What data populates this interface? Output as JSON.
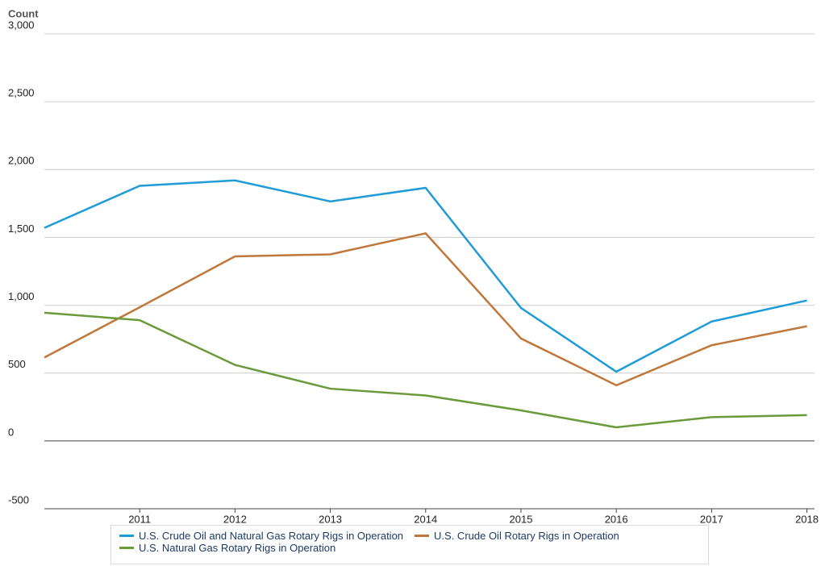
{
  "chart_data": {
    "type": "line",
    "y_label": "Count",
    "x": [
      2010,
      2011,
      2012,
      2013,
      2014,
      2015,
      2016,
      2017,
      2018
    ],
    "xlim": [
      2010,
      2018.08
    ],
    "xticks": [
      2011,
      2012,
      2013,
      2014,
      2015,
      2016,
      2017,
      2018
    ],
    "ylim": [
      -500,
      3000
    ],
    "yticks": [
      -500,
      0,
      500,
      {
        "value": 1000,
        "label": "1,000"
      },
      {
        "value": 1500,
        "label": "1,500"
      },
      {
        "value": 2000,
        "label": "2,000"
      },
      {
        "value": 2500,
        "label": "2,500"
      },
      {
        "value": 3000,
        "label": "3,000"
      }
    ],
    "grid": true,
    "legend": "bottom",
    "series": [
      {
        "name": "U.S. Crude Oil and Natural Gas Rotary Rigs in Operation",
        "color": "#1f9bd7",
        "values": [
          1570,
          1880,
          1920,
          1765,
          1865,
          980,
          510,
          880,
          1035
        ]
      },
      {
        "name": "U.S. Crude Oil Rotary Rigs in Operation",
        "color": "#c0773a",
        "values": [
          615,
          985,
          1360,
          1375,
          1530,
          755,
          410,
          705,
          845
        ]
      },
      {
        "name": "U.S. Natural Gas Rotary Rigs in Operation",
        "color": "#6a9a3a",
        "values": [
          945,
          890,
          560,
          385,
          335,
          225,
          100,
          175,
          190
        ]
      }
    ]
  }
}
